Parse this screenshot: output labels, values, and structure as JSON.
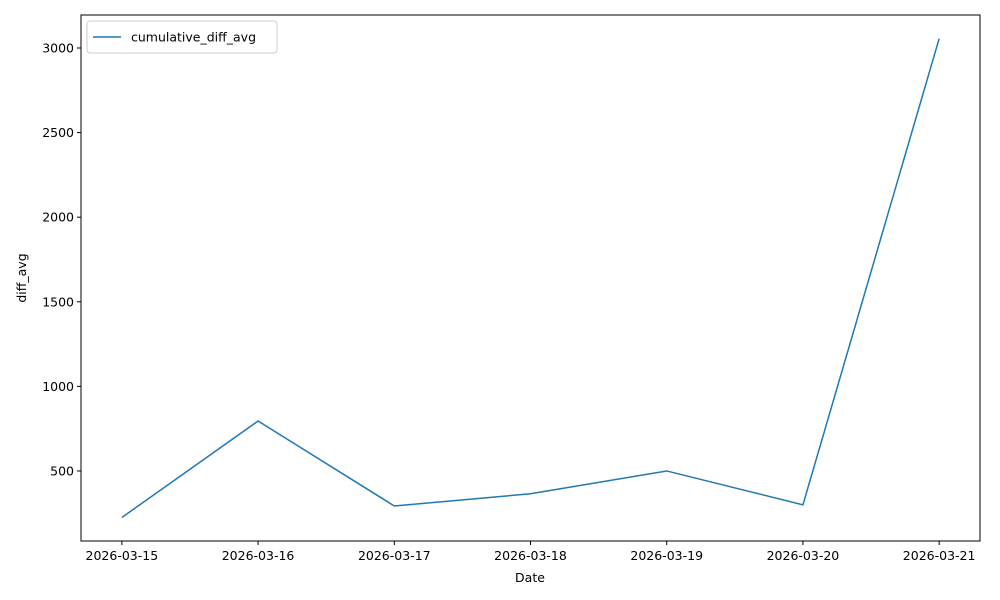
{
  "chart_data": {
    "type": "line",
    "xlabel": "Date",
    "ylabel": "diff_avg",
    "categories": [
      "2026-03-15",
      "2026-03-16",
      "2026-03-17",
      "2026-03-18",
      "2026-03-19",
      "2026-03-20",
      "2026-03-21"
    ],
    "series": [
      {
        "name": "cumulative_diff_avg",
        "color": "#1f77b4",
        "values": [
          225,
          795,
          293,
          365,
          500,
          300,
          3055
        ]
      }
    ],
    "ylim": [
      86,
      3195
    ],
    "yticks": [
      500,
      1000,
      1500,
      2000,
      2500,
      3000
    ],
    "legend": "upper left"
  }
}
